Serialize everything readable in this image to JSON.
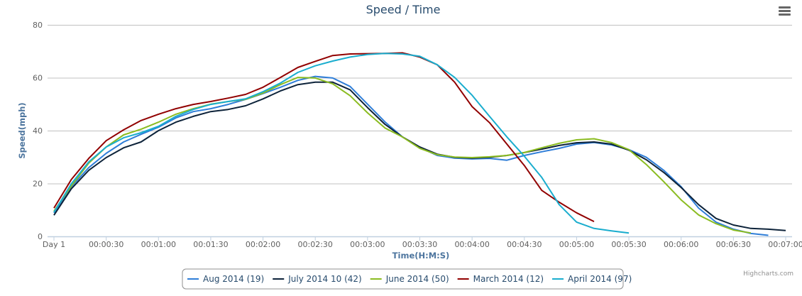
{
  "chart_data": {
    "type": "line",
    "title": "Speed / Time",
    "xlabel": "Time(H:M:S)",
    "ylabel": "Speed(mph)",
    "ylim": [
      0,
      80
    ],
    "yticks": [
      "0",
      "20",
      "40",
      "60",
      "80"
    ],
    "xticks": [
      "Day 1",
      "00:00:30",
      "00:01:00",
      "00:01:30",
      "00:02:00",
      "00:02:30",
      "00:03:00",
      "00:03:30",
      "00:04:00",
      "00:04:30",
      "00:05:00",
      "00:05:30",
      "00:06:00",
      "00:06:30",
      "00:07:00"
    ],
    "xlim": [
      "00:00:00",
      "00:07:00"
    ],
    "x_step": "00:00:10",
    "grid": true,
    "legend": "bottom",
    "credit": "Highcharts.com",
    "series": [
      {
        "name": "Aug 2014 (19)",
        "color": "#2f7ed8",
        "values": [
          8.9,
          18.8,
          26,
          31.4,
          35.7,
          38.6,
          41.3,
          44.8,
          47.2,
          48.3,
          49.9,
          51.8,
          54,
          56.4,
          59,
          60.5,
          59.9,
          56.7,
          50,
          43.3,
          37.6,
          33.6,
          30.6,
          29.6,
          29.3,
          29.5,
          28.8,
          30.6,
          32,
          33.3,
          34.9,
          35.5,
          34.6,
          32.8,
          29.9,
          25,
          18.8,
          10.7,
          5.4,
          2.7,
          1.1,
          0.4
        ]
      },
      {
        "name": "July 2014 10 (42)",
        "color": "#0d233a",
        "values": [
          8,
          18,
          25,
          29.8,
          33.5,
          35.7,
          40,
          43.2,
          45.4,
          47.2,
          48,
          49.4,
          52,
          55,
          57.4,
          58.3,
          58.3,
          55.4,
          48.7,
          42.4,
          37.6,
          33.8,
          31.1,
          29.9,
          29.6,
          29.9,
          30.6,
          31.7,
          33,
          34.4,
          35.4,
          35.7,
          34.9,
          32.6,
          29,
          24.2,
          18.5,
          12,
          6.8,
          4.3,
          3,
          2.7,
          2.2
        ]
      },
      {
        "name": "June 2014 (50)",
        "color": "#8bbc21",
        "values": [
          9.5,
          19.1,
          27.7,
          33.8,
          38.4,
          40.5,
          43.2,
          46.2,
          48.3,
          50,
          51,
          51.8,
          54.2,
          57.4,
          60.1,
          59.9,
          57.7,
          53.2,
          46.7,
          41,
          37.6,
          33.3,
          30.9,
          30,
          29.8,
          30.1,
          30.6,
          31.7,
          33.5,
          35.2,
          36.5,
          36.9,
          35.5,
          32.8,
          27.2,
          20.7,
          13.8,
          8.1,
          4.8,
          2.4,
          1.3
        ]
      },
      {
        "name": "March 2014 (12)",
        "color": "#910000",
        "values": [
          10.7,
          21.5,
          29.5,
          36.2,
          40.3,
          43.8,
          46.2,
          48.3,
          49.9,
          51,
          52.3,
          53.7,
          56.4,
          60.1,
          63.9,
          66.2,
          68.4,
          69,
          69.1,
          69.2,
          69.4,
          67.8,
          64.9,
          58.3,
          49.1,
          43,
          34.9,
          26.8,
          17.4,
          12.9,
          8.9,
          5.6
        ]
      },
      {
        "name": "April 2014 (97)",
        "color": "#1aadce",
        "values": [
          9.1,
          19.9,
          28.2,
          33.8,
          37.3,
          39.2,
          41.6,
          45.4,
          48,
          49.9,
          51,
          52,
          54.7,
          58,
          62,
          64.5,
          66.3,
          67.8,
          68.8,
          69.2,
          69,
          68.1,
          64.9,
          60.1,
          53.4,
          45.4,
          37.6,
          30.3,
          22.3,
          12,
          5.4,
          3,
          2.1,
          1.3
        ]
      }
    ]
  },
  "toolbar": {
    "menu_icon": "hamburger-menu-icon"
  }
}
